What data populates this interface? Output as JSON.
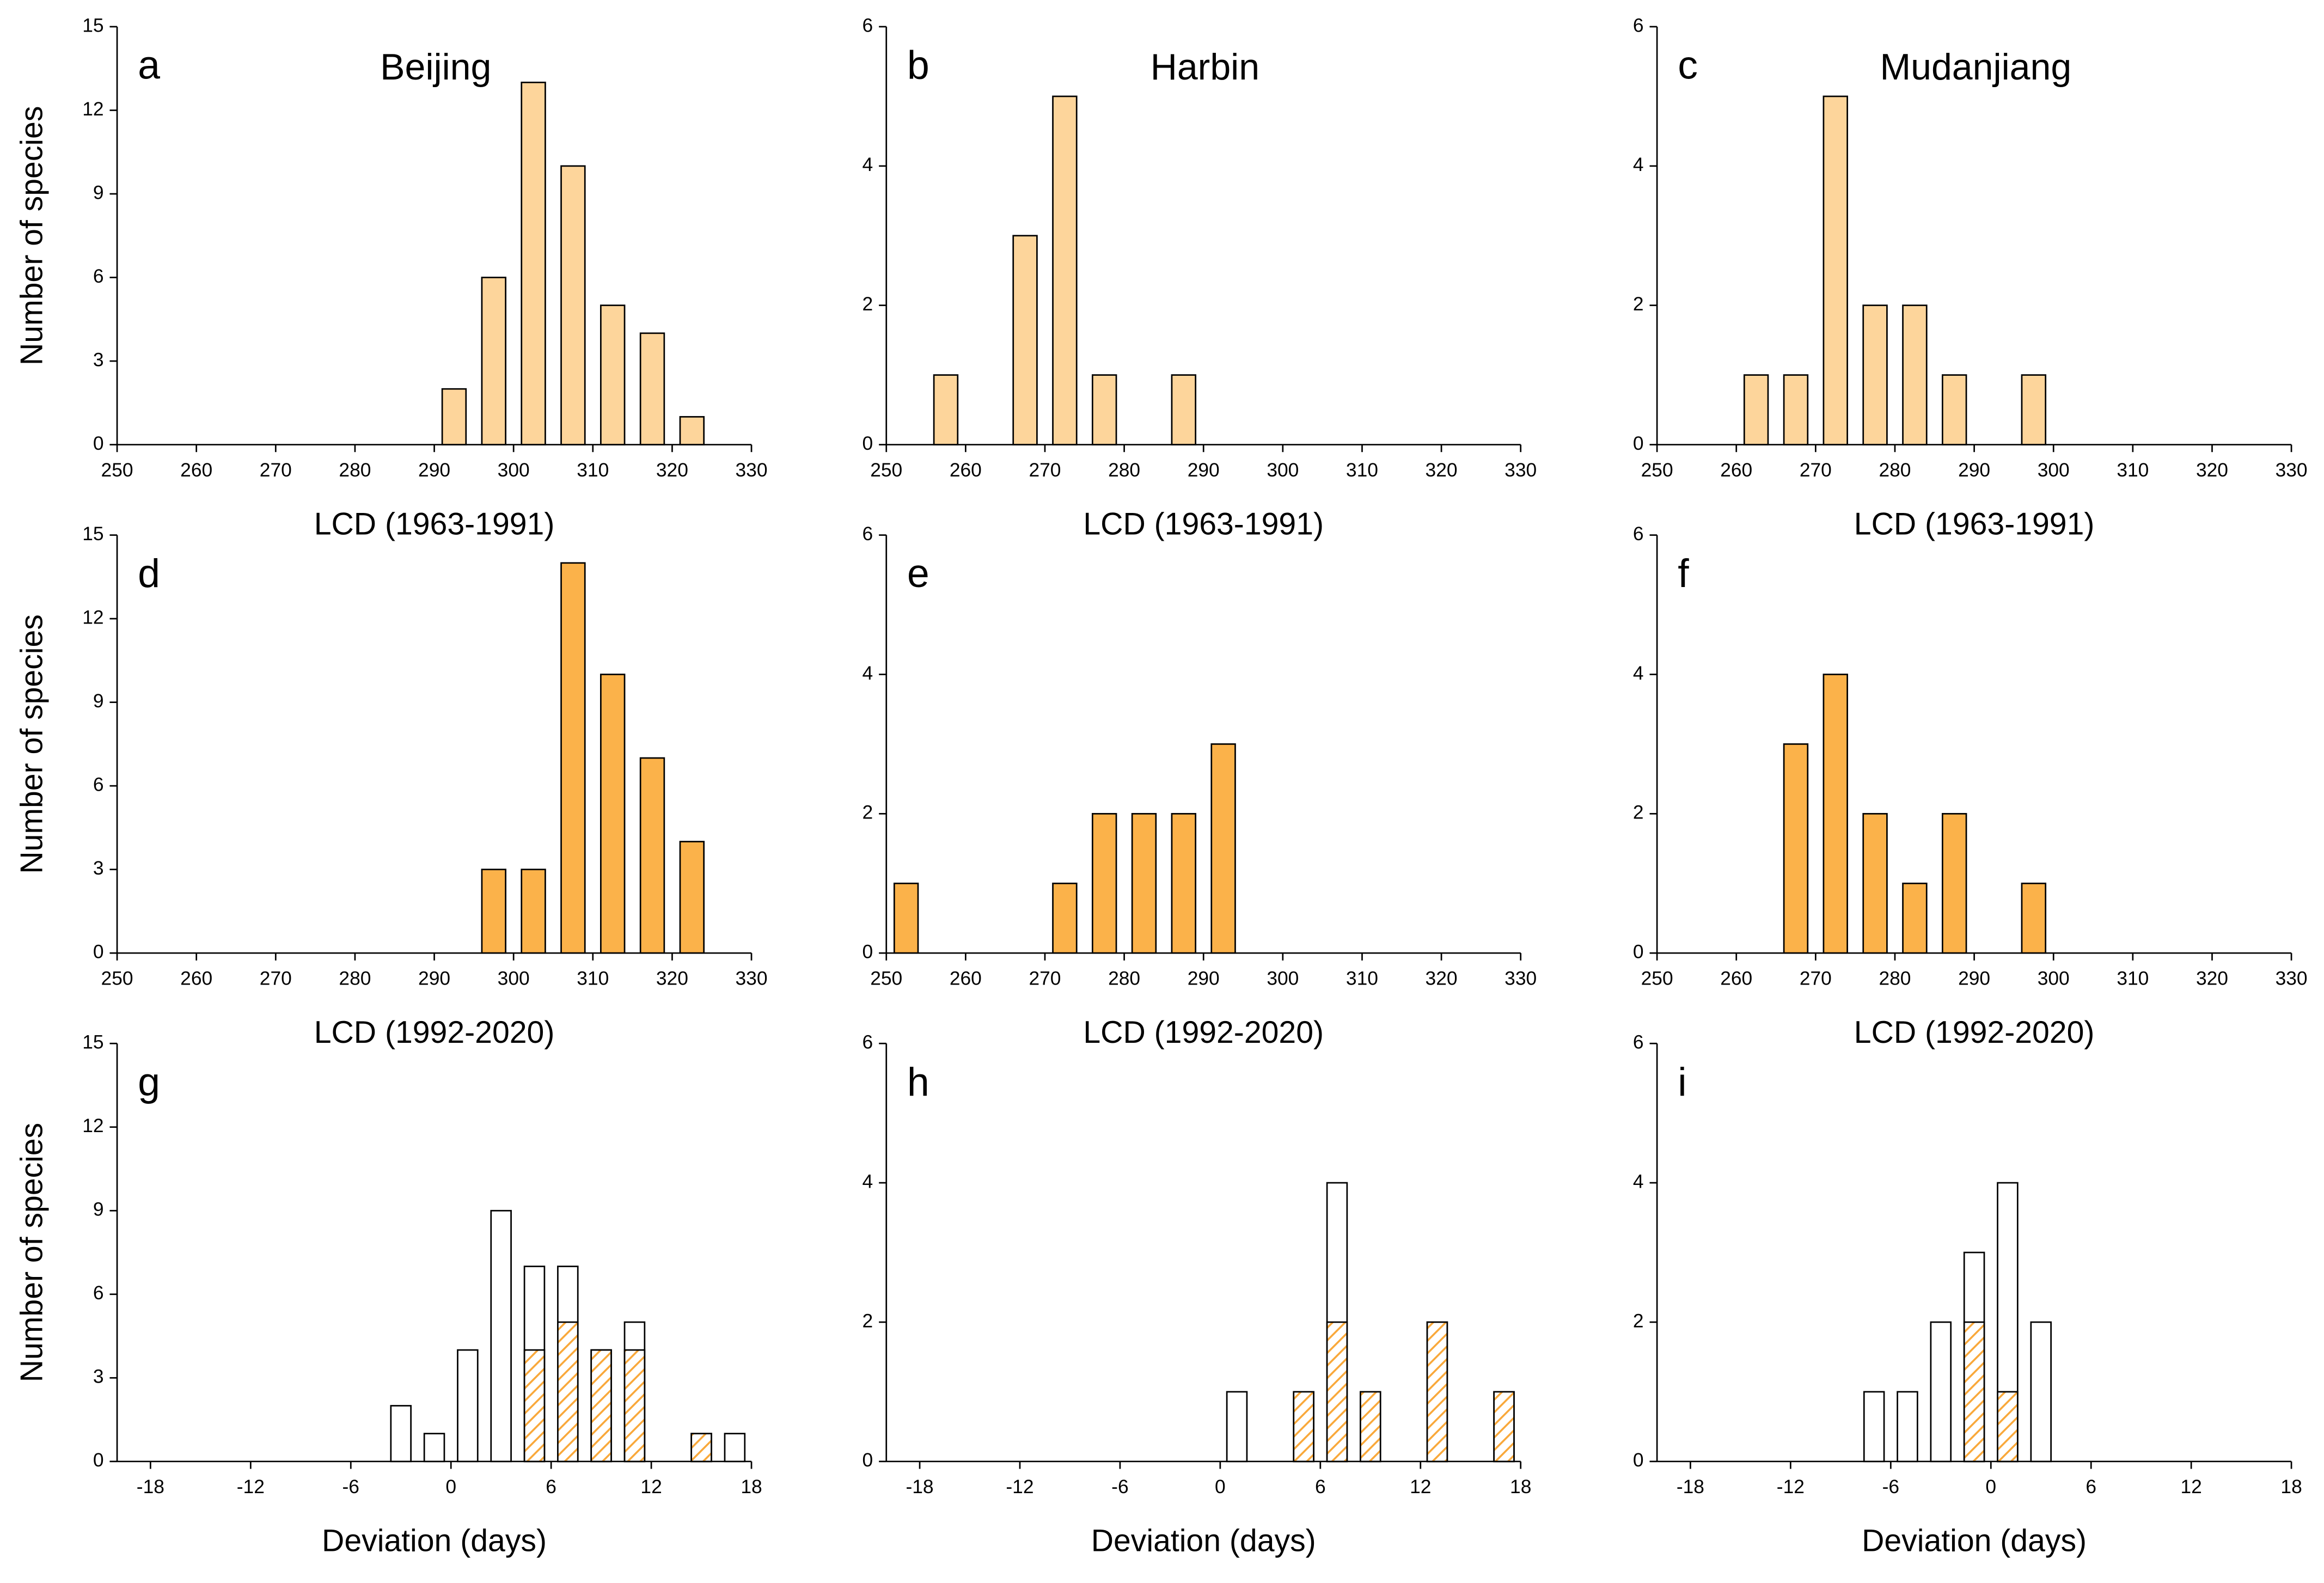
{
  "chart_data": [
    {
      "type": "bar",
      "panel_label": "a",
      "title": "Beijing",
      "xlabel": "LCD (1963-1991)",
      "ylabel": "Number of species",
      "color": "#fdd59b",
      "x": [
        292.5,
        297.5,
        302.5,
        307.5,
        312.5,
        317.5,
        322.5
      ],
      "values": [
        2,
        6,
        13,
        10,
        5,
        4,
        1
      ],
      "xlim": [
        250,
        330
      ],
      "xticks": [
        250,
        260,
        270,
        280,
        290,
        300,
        310,
        320,
        330
      ],
      "ylim": [
        0,
        15
      ],
      "yticks": [
        0,
        3,
        6,
        9,
        12,
        15
      ]
    },
    {
      "type": "bar",
      "panel_label": "b",
      "title": "Harbin",
      "xlabel": "LCD (1963-1991)",
      "color": "#fdd59b",
      "x": [
        257.5,
        267.5,
        272.5,
        277.5,
        287.5
      ],
      "values": [
        1,
        3,
        5,
        1,
        1
      ],
      "xlim": [
        250,
        330
      ],
      "xticks": [
        250,
        260,
        270,
        280,
        290,
        300,
        310,
        320,
        330
      ],
      "ylim": [
        0,
        6
      ],
      "yticks": [
        0,
        2,
        4,
        6
      ]
    },
    {
      "type": "bar",
      "panel_label": "c",
      "title": "Mudanjiang",
      "xlabel": "LCD (1963-1991)",
      "color": "#fdd59b",
      "x": [
        262.5,
        267.5,
        272.5,
        277.5,
        282.5,
        287.5,
        297.5
      ],
      "values": [
        1,
        1,
        5,
        2,
        2,
        1,
        1
      ],
      "xlim": [
        250,
        330
      ],
      "xticks": [
        250,
        260,
        270,
        280,
        290,
        300,
        310,
        320,
        330
      ],
      "ylim": [
        0,
        6
      ],
      "yticks": [
        0,
        2,
        4,
        6
      ]
    },
    {
      "type": "bar",
      "panel_label": "d",
      "xlabel": "LCD (1992-2020)",
      "ylabel": "Number of species",
      "color": "#fbb24a",
      "x": [
        297.5,
        302.5,
        307.5,
        312.5,
        317.5,
        322.5
      ],
      "values": [
        3,
        3,
        14,
        10,
        7,
        4
      ],
      "xlim": [
        250,
        330
      ],
      "xticks": [
        250,
        260,
        270,
        280,
        290,
        300,
        310,
        320,
        330
      ],
      "ylim": [
        0,
        15
      ],
      "yticks": [
        0,
        3,
        6,
        9,
        12,
        15
      ]
    },
    {
      "type": "bar",
      "panel_label": "e",
      "xlabel": "LCD (1992-2020)",
      "color": "#fbb24a",
      "x": [
        252.5,
        272.5,
        277.5,
        282.5,
        287.5,
        292.5
      ],
      "values": [
        1,
        1,
        2,
        2,
        2,
        3
      ],
      "xlim": [
        250,
        330
      ],
      "xticks": [
        250,
        260,
        270,
        280,
        290,
        300,
        310,
        320,
        330
      ],
      "ylim": [
        0,
        6
      ],
      "yticks": [
        0,
        2,
        4,
        6
      ]
    },
    {
      "type": "bar",
      "panel_label": "f",
      "xlabel": "LCD (1992-2020)",
      "color": "#fbb24a",
      "x": [
        267.5,
        272.5,
        277.5,
        282.5,
        287.5,
        297.5
      ],
      "values": [
        3,
        4,
        2,
        1,
        2,
        1
      ],
      "xlim": [
        250,
        330
      ],
      "xticks": [
        250,
        260,
        270,
        280,
        290,
        300,
        310,
        320,
        330
      ],
      "ylim": [
        0,
        6
      ],
      "yticks": [
        0,
        2,
        4,
        6
      ]
    },
    {
      "type": "overlay_bar",
      "panel_label": "g",
      "xlabel": "Deviation (days)",
      "ylabel": "Number of species",
      "x": [
        -3,
        -1,
        1,
        3,
        5,
        7,
        9,
        11,
        15,
        17
      ],
      "series": [
        {
          "color": "#ffffff",
          "values": [
            2,
            1,
            4,
            9,
            7,
            7,
            4,
            5,
            1,
            1
          ]
        },
        {
          "color": "#f9a83a",
          "hatch": true,
          "values": [
            null,
            null,
            null,
            null,
            4,
            5,
            4,
            4,
            1,
            null
          ]
        }
      ],
      "xlim": [
        -20,
        18
      ],
      "xticks": [
        -18,
        -12,
        -6,
        0,
        6,
        12,
        18
      ],
      "ylim": [
        0,
        15
      ],
      "yticks": [
        0,
        3,
        6,
        9,
        12,
        15
      ]
    },
    {
      "type": "overlay_bar",
      "panel_label": "h",
      "xlabel": "Deviation (days)",
      "x": [
        1,
        5,
        7,
        9,
        13,
        17
      ],
      "series": [
        {
          "color": "#ffffff",
          "values": [
            1,
            1,
            4,
            1,
            2,
            1
          ]
        },
        {
          "color": "#f9a83a",
          "hatch": true,
          "values": [
            null,
            1,
            2,
            1,
            2,
            1
          ]
        }
      ],
      "xlim": [
        -20,
        18
      ],
      "xticks": [
        -18,
        -12,
        -6,
        0,
        6,
        12,
        18
      ],
      "ylim": [
        0,
        6
      ],
      "yticks": [
        0,
        2,
        4,
        6
      ]
    },
    {
      "type": "overlay_bar",
      "panel_label": "i",
      "xlabel": "Deviation (days)",
      "x": [
        -7,
        -5,
        -3,
        -1,
        1,
        3
      ],
      "series": [
        {
          "color": "#ffffff",
          "values": [
            1,
            1,
            2,
            3,
            4,
            2
          ]
        },
        {
          "color": "#f9a83a",
          "hatch": true,
          "values": [
            null,
            null,
            null,
            2,
            1,
            null
          ]
        }
      ],
      "xlim": [
        -20,
        18
      ],
      "xticks": [
        -18,
        -12,
        -6,
        0,
        6,
        12,
        18
      ],
      "ylim": [
        0,
        6
      ],
      "yticks": [
        0,
        2,
        4,
        6
      ]
    }
  ]
}
